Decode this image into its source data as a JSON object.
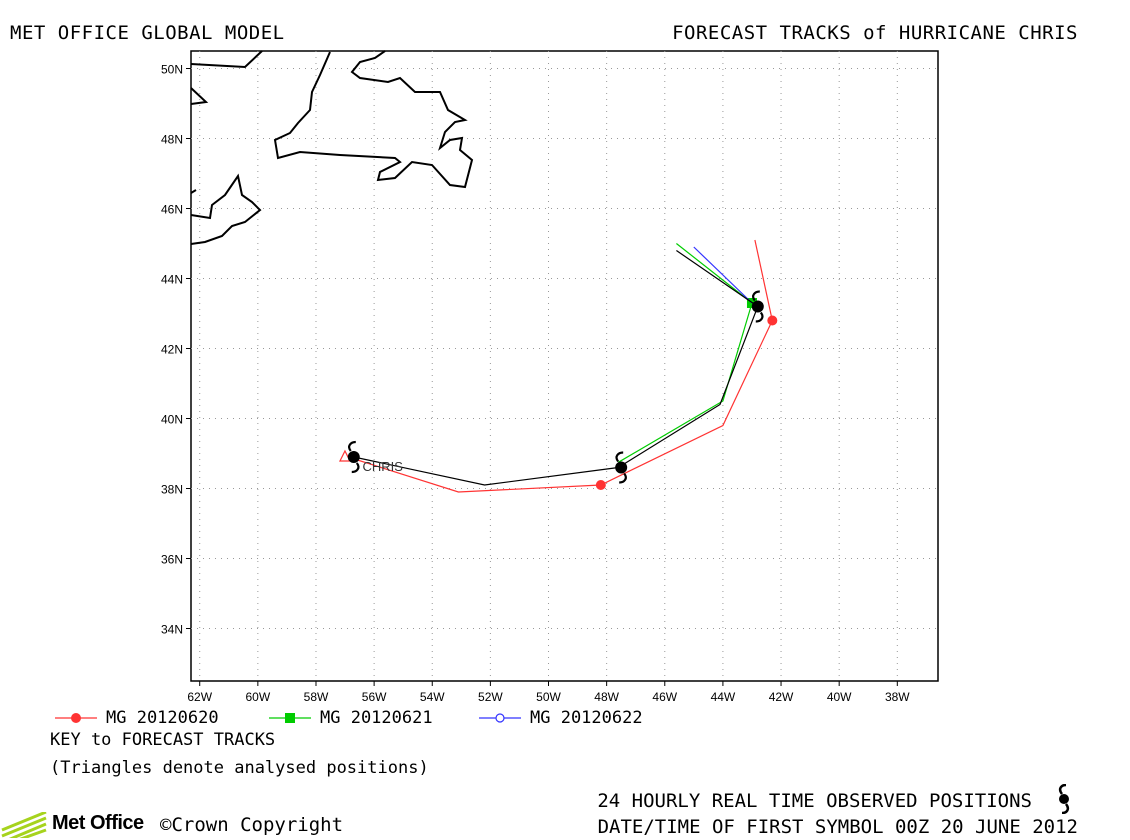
{
  "header": {
    "left_title": "MET OFFICE GLOBAL MODEL",
    "right_title": "FORECAST TRACKS of HURRICANE CHRIS"
  },
  "map": {
    "lat_range": [
      32.5,
      50.5
    ],
    "lon_range": [
      -62.3,
      -36.6
    ],
    "lat_labels": [
      "50N",
      "48N",
      "46N",
      "44N",
      "42N",
      "40N",
      "38N",
      "36N",
      "34N"
    ],
    "lat_values": [
      50,
      48,
      46,
      44,
      42,
      40,
      38,
      36,
      34
    ],
    "lon_labels": [
      "62W",
      "60W",
      "58W",
      "56W",
      "54W",
      "52W",
      "50W",
      "48W",
      "46W",
      "44W",
      "42W",
      "40W",
      "38W"
    ],
    "lon_values": [
      -62,
      -60,
      -58,
      -56,
      -54,
      -52,
      -50,
      -48,
      -46,
      -44,
      -42,
      -40,
      -38
    ],
    "storm_label": "CHRIS",
    "storm_label_lat": 38.5,
    "storm_label_lon": -56.4
  },
  "tracks": [
    {
      "name": "MG 20120620",
      "color": "#ff3333",
      "marker": "filled-circle",
      "points": [
        [
          -56.9,
          38.9
        ],
        [
          -53.1,
          37.9
        ],
        [
          -48.2,
          38.1
        ],
        [
          -44.0,
          39.8
        ],
        [
          -42.3,
          42.8
        ],
        [
          -42.9,
          45.1
        ]
      ],
      "markers": [
        [
          -48.2,
          38.1
        ],
        [
          -42.3,
          42.8
        ]
      ],
      "triangle": [
        -56.9,
        38.9
      ]
    },
    {
      "name": "MG 20120621",
      "color": "#00cc00",
      "marker": "filled-square",
      "points": [
        [
          -47.6,
          38.75
        ],
        [
          -44.0,
          40.5
        ],
        [
          -43.0,
          43.3
        ],
        [
          -45.6,
          45.0
        ]
      ],
      "markers": [
        [
          -43.0,
          43.3
        ]
      ]
    },
    {
      "name": "MG 20120622",
      "color": "#3333ff",
      "marker": "open-circle",
      "points": [
        [
          -43.0,
          43.3
        ],
        [
          -45.0,
          44.9
        ]
      ],
      "markers": []
    },
    {
      "name": "observed",
      "color": "#000000",
      "marker": "none",
      "points": [
        [
          -56.7,
          38.9
        ],
        [
          -52.2,
          38.1
        ],
        [
          -47.6,
          38.6
        ],
        [
          -44.1,
          40.4
        ],
        [
          -42.8,
          43.2
        ],
        [
          -45.6,
          44.8
        ]
      ],
      "markers": []
    }
  ],
  "observed_positions": [
    [
      -56.7,
      38.9
    ],
    [
      -47.5,
      38.6
    ],
    [
      -42.8,
      43.2
    ]
  ],
  "legend": {
    "entries": [
      "MG 20120620",
      "MG 20120621",
      "MG 20120622"
    ],
    "key_title": "KEY to FORECAST TRACKS",
    "key_note": "(Triangles denote analysed positions)"
  },
  "footer": {
    "logo_text": "Met Office",
    "copyright": "©Crown Copyright",
    "observed_note": "24 HOURLY REAL TIME OBSERVED POSITIONS",
    "date_note": "DATE/TIME OF FIRST SYMBOL 00Z 20 JUNE 2012"
  }
}
